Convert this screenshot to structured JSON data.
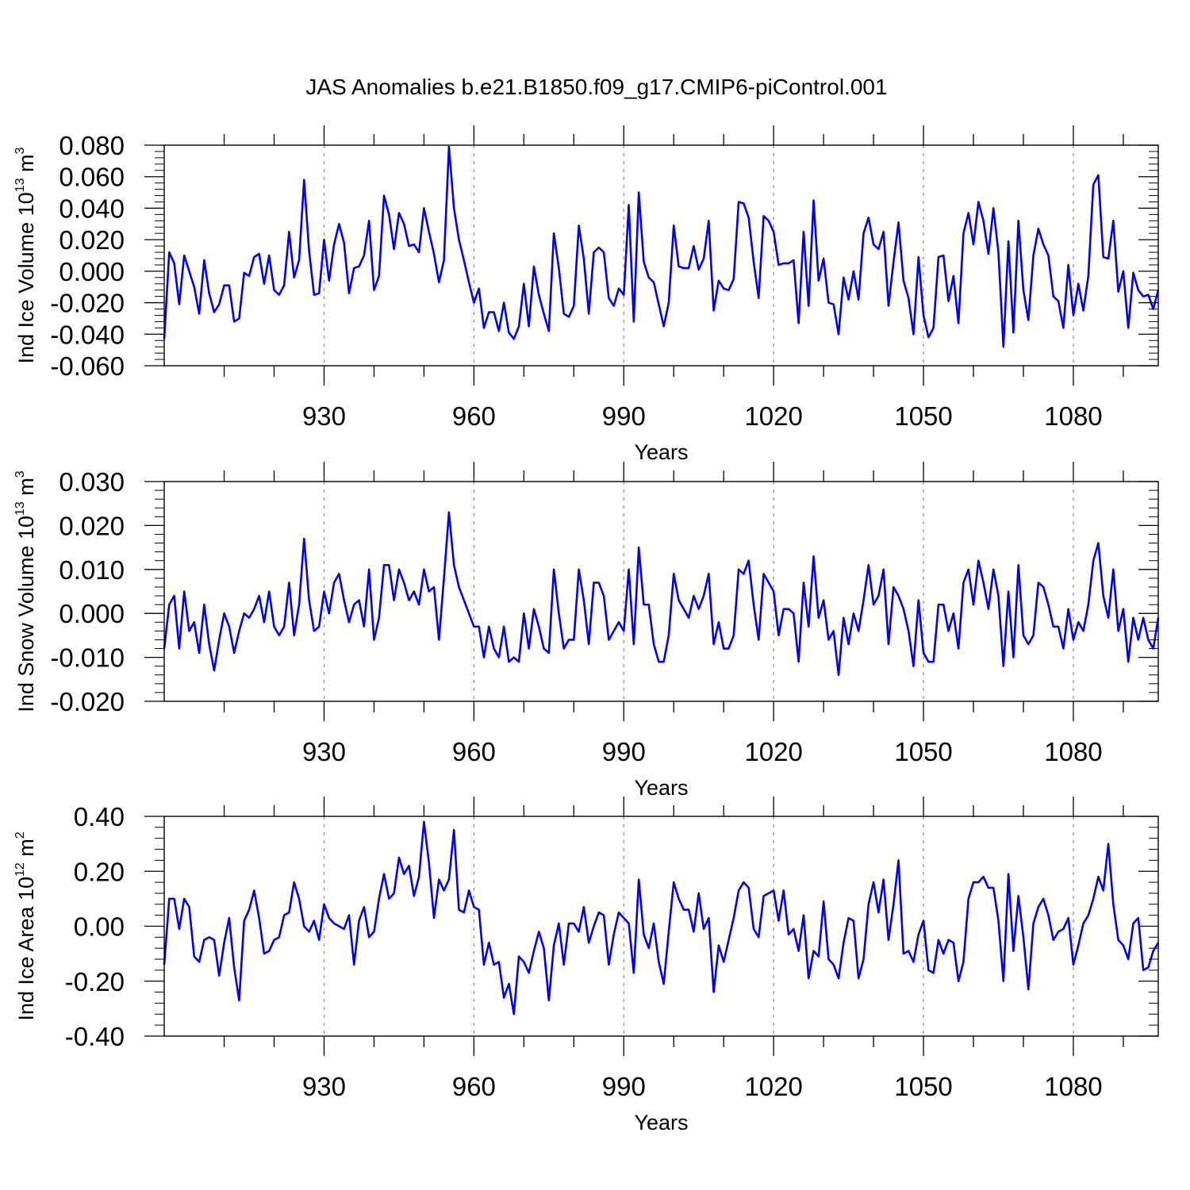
{
  "title": "JAS Anomalies b.e21.B1850.f09_g17.CMIP6-piControl.001",
  "colors": {
    "series": "#0000ff",
    "axis": "#000000",
    "refline": "#9a9a9a"
  },
  "chart_data": [
    {
      "type": "line",
      "series_name": "Ind Ice Volume",
      "ylabel": {
        "main": "Ind Ice Volume 10",
        "exp": "13",
        "unit": " m",
        "unit_exp": "3"
      },
      "xlabel": "Years",
      "xlim": [
        898,
        1097
      ],
      "ylim": [
        -0.06,
        0.08
      ],
      "yticks": [
        -0.06,
        -0.04,
        -0.02,
        0.0,
        0.02,
        0.04,
        0.06,
        0.08
      ],
      "ytick_labels": [
        "-0.060",
        "-0.040",
        "-0.020",
        "0.000",
        "0.020",
        "0.040",
        "0.060",
        "0.080"
      ],
      "xticks": [
        930,
        960,
        990,
        1020,
        1050,
        1080
      ],
      "xtick_labels": [
        "930",
        "960",
        "990",
        "1020",
        "1050",
        "1080"
      ],
      "x_start": 898,
      "values": [
        -0.043,
        0.012,
        0.005,
        -0.021,
        0.01,
        0.0,
        -0.01,
        -0.027,
        0.007,
        -0.014,
        -0.026,
        -0.021,
        -0.009,
        -0.009,
        -0.032,
        -0.03,
        -0.001,
        -0.003,
        0.009,
        0.011,
        -0.008,
        0.01,
        -0.012,
        -0.015,
        -0.009,
        0.025,
        -0.004,
        0.007,
        0.058,
        0.013,
        -0.015,
        -0.014,
        0.02,
        -0.006,
        0.017,
        0.03,
        0.018,
        -0.014,
        0.002,
        0.003,
        0.01,
        0.032,
        -0.012,
        -0.003,
        0.048,
        0.036,
        0.014,
        0.037,
        0.03,
        0.016,
        0.017,
        0.012,
        0.04,
        0.025,
        0.011,
        -0.007,
        0.007,
        0.079,
        0.04,
        0.02,
        0.007,
        -0.007,
        -0.02,
        -0.011,
        -0.036,
        -0.026,
        -0.026,
        -0.038,
        -0.02,
        -0.039,
        -0.043,
        -0.035,
        -0.008,
        -0.035,
        0.003,
        -0.015,
        -0.027,
        -0.038,
        0.024,
        0.002,
        -0.027,
        -0.029,
        -0.022,
        0.029,
        0.008,
        -0.027,
        0.012,
        0.015,
        0.012,
        -0.017,
        -0.022,
        -0.011,
        -0.015,
        0.042,
        -0.032,
        0.05,
        0.006,
        -0.004,
        -0.007,
        -0.021,
        -0.035,
        -0.02,
        0.029,
        0.003,
        0.002,
        0.002,
        0.016,
        0.001,
        0.008,
        0.032,
        -0.025,
        -0.006,
        -0.011,
        -0.012,
        -0.005,
        0.044,
        0.043,
        0.034,
        0.006,
        -0.017,
        0.035,
        0.032,
        0.025,
        0.004,
        0.005,
        0.005,
        0.007,
        -0.033,
        0.025,
        -0.022,
        0.045,
        -0.006,
        0.008,
        -0.02,
        -0.021,
        -0.04,
        -0.004,
        -0.018,
        0.0,
        -0.018,
        0.024,
        0.034,
        0.017,
        0.014,
        0.025,
        -0.022,
        0.006,
        0.031,
        -0.006,
        -0.017,
        -0.04,
        0.009,
        -0.028,
        -0.042,
        -0.036,
        0.009,
        0.01,
        -0.019,
        -0.003,
        -0.033,
        0.024,
        0.037,
        0.017,
        0.044,
        0.032,
        0.011,
        0.04,
        0.012,
        -0.048,
        0.019,
        -0.039,
        0.032,
        -0.012,
        -0.031,
        0.01,
        0.027,
        0.017,
        0.01,
        -0.016,
        -0.019,
        -0.036,
        0.004,
        -0.028,
        -0.008,
        -0.025,
        -0.003,
        0.055,
        0.061,
        0.009,
        0.008,
        0.032,
        -0.013,
        0.0,
        -0.036,
        -0.001,
        -0.012,
        -0.016,
        -0.015,
        -0.024,
        -0.012
      ]
    },
    {
      "type": "line",
      "series_name": "Ind Snow Volume",
      "ylabel": {
        "main": "Ind Snow Volume 10",
        "exp": "13",
        "unit": " m",
        "unit_exp": "3"
      },
      "xlabel": "Years",
      "xlim": [
        898,
        1097
      ],
      "ylim": [
        -0.02,
        0.03
      ],
      "yticks": [
        -0.02,
        -0.01,
        0.0,
        0.01,
        0.02,
        0.03
      ],
      "ytick_labels": [
        "-0.020",
        "-0.010",
        "0.000",
        "0.010",
        "0.020",
        "0.030"
      ],
      "xticks": [
        930,
        960,
        990,
        1020,
        1050,
        1080
      ],
      "xtick_labels": [
        "930",
        "960",
        "990",
        "1020",
        "1050",
        "1080"
      ],
      "x_start": 898,
      "values": [
        -0.008,
        0.002,
        0.004,
        -0.008,
        0.005,
        -0.004,
        -0.002,
        -0.009,
        0.002,
        -0.007,
        -0.013,
        -0.006,
        0.0,
        -0.003,
        -0.009,
        -0.004,
        0.0,
        -0.001,
        0.001,
        0.004,
        -0.002,
        0.005,
        -0.003,
        -0.005,
        -0.003,
        0.007,
        -0.005,
        0.002,
        0.017,
        0.003,
        -0.004,
        -0.003,
        0.005,
        0.0,
        0.007,
        0.009,
        0.003,
        -0.002,
        0.002,
        0.003,
        -0.003,
        0.01,
        -0.006,
        -0.001,
        0.011,
        0.011,
        0.003,
        0.01,
        0.007,
        0.003,
        0.005,
        0.002,
        0.01,
        0.005,
        0.006,
        -0.006,
        0.008,
        0.023,
        0.011,
        0.006,
        0.003,
        0.0,
        -0.003,
        -0.003,
        -0.01,
        -0.003,
        -0.008,
        -0.01,
        -0.003,
        -0.011,
        -0.01,
        -0.011,
        0.0,
        -0.008,
        0.001,
        -0.003,
        -0.008,
        -0.009,
        0.01,
        0.0,
        -0.008,
        -0.006,
        -0.006,
        0.01,
        0.003,
        -0.007,
        0.007,
        0.007,
        0.004,
        -0.006,
        -0.004,
        -0.002,
        -0.004,
        0.01,
        -0.007,
        0.015,
        0.002,
        0.002,
        -0.007,
        -0.011,
        -0.011,
        -0.005,
        0.009,
        0.003,
        0.001,
        -0.001,
        0.004,
        0.001,
        0.004,
        0.009,
        -0.007,
        -0.002,
        -0.008,
        -0.008,
        -0.005,
        0.01,
        0.009,
        0.012,
        0.002,
        -0.006,
        0.009,
        0.007,
        0.005,
        -0.005,
        0.001,
        0.001,
        0.0,
        -0.011,
        0.007,
        -0.003,
        0.013,
        -0.001,
        0.003,
        -0.006,
        -0.004,
        -0.014,
        -0.001,
        -0.007,
        0.0,
        -0.004,
        0.003,
        0.011,
        0.002,
        0.004,
        0.01,
        -0.007,
        0.006,
        0.004,
        0.001,
        -0.004,
        -0.012,
        0.003,
        -0.009,
        -0.011,
        -0.011,
        0.002,
        0.002,
        -0.004,
        0.0,
        -0.008,
        0.007,
        0.01,
        0.002,
        0.012,
        0.007,
        0.001,
        0.01,
        0.004,
        -0.012,
        0.005,
        -0.01,
        0.011,
        -0.005,
        -0.007,
        -0.005,
        0.007,
        0.006,
        0.002,
        -0.003,
        -0.003,
        -0.008,
        0.001,
        -0.006,
        -0.002,
        -0.004,
        0.002,
        0.012,
        0.016,
        0.004,
        -0.001,
        0.01,
        -0.004,
        0.001,
        -0.011,
        -0.001,
        -0.006,
        -0.001,
        -0.006,
        -0.008,
        -0.001
      ]
    },
    {
      "type": "line",
      "series_name": "Ind Ice Area",
      "ylabel": {
        "main": "Ind Ice Area 10",
        "exp": "12",
        "unit": " m",
        "unit_exp": "2"
      },
      "xlabel": "Years",
      "xlim": [
        898,
        1097
      ],
      "ylim": [
        -0.4,
        0.4
      ],
      "yticks": [
        -0.4,
        -0.2,
        0.0,
        0.2,
        0.4
      ],
      "ytick_labels": [
        "-0.40",
        "-0.20",
        "0.00",
        "0.20",
        "0.40"
      ],
      "xticks": [
        930,
        960,
        990,
        1020,
        1050,
        1080
      ],
      "xtick_labels": [
        "930",
        "960",
        "990",
        "1020",
        "1050",
        "1080"
      ],
      "x_start": 898,
      "values": [
        -0.14,
        0.1,
        0.1,
        -0.01,
        0.1,
        0.07,
        -0.11,
        -0.13,
        -0.05,
        -0.04,
        -0.05,
        -0.18,
        -0.06,
        0.03,
        -0.15,
        -0.27,
        0.02,
        0.06,
        0.13,
        0.03,
        -0.1,
        -0.09,
        -0.05,
        -0.04,
        0.04,
        0.05,
        0.16,
        0.1,
        0.0,
        -0.02,
        0.02,
        -0.05,
        0.08,
        0.03,
        0.01,
        0.0,
        -0.01,
        0.04,
        -0.14,
        0.02,
        0.07,
        -0.04,
        -0.02,
        0.1,
        0.19,
        0.1,
        0.12,
        0.25,
        0.19,
        0.22,
        0.11,
        0.18,
        0.38,
        0.23,
        0.03,
        0.17,
        0.13,
        0.17,
        0.35,
        0.06,
        0.05,
        0.13,
        0.07,
        0.06,
        -0.14,
        -0.06,
        -0.14,
        -0.13,
        -0.26,
        -0.21,
        -0.32,
        -0.11,
        -0.13,
        -0.17,
        -0.09,
        -0.02,
        -0.08,
        -0.27,
        -0.07,
        0.01,
        -0.14,
        0.01,
        0.01,
        -0.02,
        0.07,
        -0.06,
        0.0,
        0.05,
        0.04,
        -0.14,
        -0.03,
        0.05,
        0.03,
        0.01,
        -0.17,
        0.17,
        -0.03,
        -0.08,
        0.01,
        -0.13,
        -0.21,
        -0.02,
        0.16,
        0.1,
        0.06,
        0.06,
        -0.02,
        0.12,
        -0.01,
        0.03,
        -0.24,
        -0.07,
        -0.13,
        -0.05,
        0.03,
        0.13,
        0.16,
        0.14,
        -0.01,
        -0.04,
        0.11,
        0.12,
        0.13,
        0.02,
        0.13,
        -0.03,
        -0.01,
        -0.09,
        0.04,
        -0.19,
        -0.09,
        -0.11,
        0.09,
        -0.12,
        -0.14,
        -0.19,
        -0.06,
        0.03,
        0.02,
        -0.19,
        -0.12,
        0.08,
        0.16,
        0.05,
        0.17,
        -0.05,
        0.08,
        0.24,
        -0.1,
        -0.09,
        -0.13,
        -0.03,
        0.02,
        -0.16,
        -0.17,
        -0.05,
        -0.1,
        -0.05,
        -0.06,
        -0.2,
        -0.13,
        0.1,
        0.16,
        0.16,
        0.18,
        0.14,
        0.14,
        0.02,
        -0.2,
        0.19,
        -0.09,
        0.11,
        -0.04,
        -0.23,
        0.01,
        0.07,
        0.1,
        0.04,
        -0.05,
        -0.02,
        -0.01,
        0.03,
        -0.14,
        -0.07,
        0.01,
        0.04,
        0.1,
        0.18,
        0.13,
        0.3,
        0.08,
        -0.05,
        -0.07,
        -0.12,
        0.01,
        0.03,
        -0.16,
        -0.15,
        -0.09,
        -0.06
      ]
    }
  ]
}
